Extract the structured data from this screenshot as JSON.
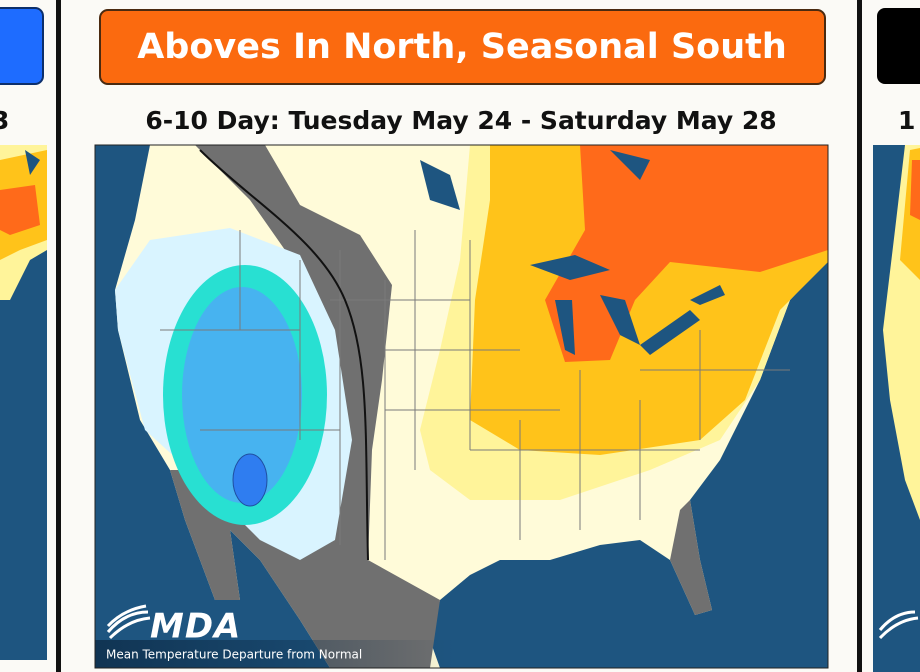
{
  "panels": [
    {
      "subtitle": "3"
    },
    {
      "title": "Aboves In North, Seasonal South",
      "subtitle": "6-10 Day: Tuesday May 24 - Saturday May 28",
      "logo": "MDA",
      "caption": "Mean Temperature Departure from Normal"
    },
    {
      "subtitle": "1"
    }
  ]
}
